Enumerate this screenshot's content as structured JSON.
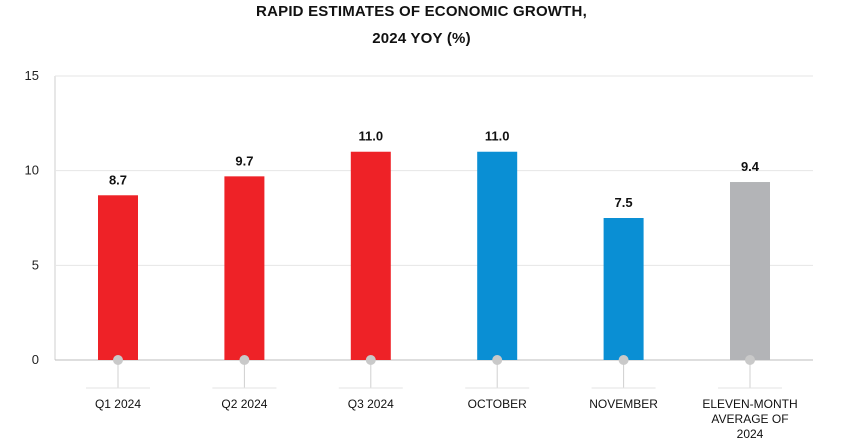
{
  "chart_data": {
    "type": "bar",
    "title_lines": [
      "RAPID ESTIMATES OF ECONOMIC GROWTH,",
      "2024 YOY (%)"
    ],
    "categories": [
      [
        "Q1 2024"
      ],
      [
        "Q2 2024"
      ],
      [
        "Q3 2024"
      ],
      [
        "OCTOBER"
      ],
      [
        "NOVEMBER"
      ],
      [
        "ELEVEN-MONTH",
        "AVERAGE OF",
        "2024"
      ]
    ],
    "values": [
      8.7,
      9.7,
      11.0,
      11.0,
      7.5,
      9.4
    ],
    "value_labels": [
      "8.7",
      "9.7",
      "11.0",
      "11.0",
      "7.5",
      "9.4"
    ],
    "bar_colors": [
      "#ee2227",
      "#ee2227",
      "#ee2227",
      "#0a8fd4",
      "#0a8fd4",
      "#b3b4b7"
    ],
    "ylim": [
      0,
      15
    ],
    "yticks": [
      0,
      5,
      10,
      15
    ],
    "grid": true,
    "xlabel": "",
    "ylabel": ""
  }
}
